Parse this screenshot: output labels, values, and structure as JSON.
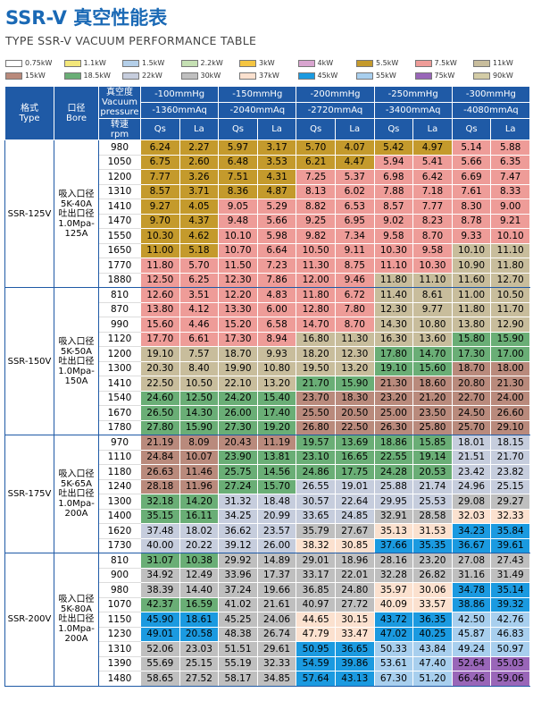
{
  "title": "SSR-V 真空性能表",
  "subtitle": "TYPE SSR-V VACUUM PERFORMANCE TABLE",
  "legend": [
    {
      "label": "0.75kW",
      "color": "#ffffff"
    },
    {
      "label": "1.1kW",
      "color": "#f3e77a"
    },
    {
      "label": "1.5kW",
      "color": "#b4cfe9"
    },
    {
      "label": "2.2kW",
      "color": "#c5e0b3"
    },
    {
      "label": "3kW",
      "color": "#f4c542"
    },
    {
      "label": "4kW",
      "color": "#d8a4cf"
    },
    {
      "label": "5.5kW",
      "color": "#c49a2c"
    },
    {
      "label": "7.5kW",
      "color": "#ee9c98"
    },
    {
      "label": "11kW",
      "color": "#c8bd9c"
    },
    {
      "label": "15kW",
      "color": "#b98a7c"
    },
    {
      "label": "18.5kW",
      "color": "#6aae76"
    },
    {
      "label": "22kW",
      "color": "#c6cddd"
    },
    {
      "label": "30kW",
      "color": "#bfbfbf"
    },
    {
      "label": "37kW",
      "color": "#fbe1cf"
    },
    {
      "label": "45kW",
      "color": "#1b9ae0"
    },
    {
      "label": "55kW",
      "color": "#a8cfee"
    },
    {
      "label": "75kW",
      "color": "#9966b8"
    },
    {
      "label": "90kW",
      "color": "#d3cca6"
    }
  ],
  "header": {
    "type_cn": "格式",
    "type_en": "Type",
    "bore_cn": "口径",
    "bore_en": "Bore",
    "vac_cn": "真空度",
    "vac_en1": "Vacuum",
    "vac_en2": "pressure",
    "rpm_cn": "转速",
    "rpm_en": "rpm",
    "qs": "Qs",
    "la": "La",
    "groups": [
      {
        "mmhg": "-100mmHg",
        "mmaq": "-1360mmAq"
      },
      {
        "mmhg": "-150mmHg",
        "mmaq": "-2040mmAq"
      },
      {
        "mmhg": "-200mmHg",
        "mmaq": "-2720mmAq"
      },
      {
        "mmhg": "-250mmHg",
        "mmaq": "-3400mmAq"
      },
      {
        "mmhg": "-300mmHg",
        "mmaq": "-4080mmAq"
      }
    ]
  },
  "models": [
    {
      "name": "SSR-125V",
      "bore": [
        "吸入口径",
        "5K-40A",
        "吐出口径",
        "1.0Mpa-",
        "125A"
      ],
      "rows": [
        {
          "rpm": 980,
          "values": [
            "6.24",
            "2.27",
            "5.97",
            "3.17",
            "5.70",
            "4.07",
            "5.42",
            "4.97",
            "5.14",
            "5.88"
          ],
          "colors": [
            "#c49a2c",
            "#c49a2c",
            "#c49a2c",
            "#c49a2c",
            "#ee9c98"
          ]
        },
        {
          "rpm": 1050,
          "values": [
            "6.75",
            "2.60",
            "6.48",
            "3.53",
            "6.21",
            "4.47",
            "5.94",
            "5.41",
            "5.66",
            "6.35"
          ],
          "colors": [
            "#c49a2c",
            "#c49a2c",
            "#c49a2c",
            "#ee9c98",
            "#ee9c98"
          ]
        },
        {
          "rpm": 1200,
          "values": [
            "7.77",
            "3.26",
            "7.51",
            "4.31",
            "7.25",
            "5.37",
            "6.98",
            "6.42",
            "6.69",
            "7.47"
          ],
          "colors": [
            "#c49a2c",
            "#c49a2c",
            "#ee9c98",
            "#ee9c98",
            "#ee9c98"
          ]
        },
        {
          "rpm": 1310,
          "values": [
            "8.57",
            "3.71",
            "8.36",
            "4.87",
            "8.13",
            "6.02",
            "7.88",
            "7.18",
            "7.61",
            "8.33"
          ],
          "colors": [
            "#c49a2c",
            "#c49a2c",
            "#ee9c98",
            "#ee9c98",
            "#ee9c98"
          ]
        },
        {
          "rpm": 1410,
          "values": [
            "9.27",
            "4.05",
            "9.05",
            "5.29",
            "8.82",
            "6.53",
            "8.57",
            "7.77",
            "8.30",
            "9.00"
          ],
          "colors": [
            "#c49a2c",
            "#ee9c98",
            "#ee9c98",
            "#ee9c98",
            "#ee9c98"
          ]
        },
        {
          "rpm": 1470,
          "values": [
            "9.70",
            "4.37",
            "9.48",
            "5.66",
            "9.25",
            "6.95",
            "9.02",
            "8.23",
            "8.78",
            "9.21"
          ],
          "colors": [
            "#c49a2c",
            "#ee9c98",
            "#ee9c98",
            "#ee9c98",
            "#ee9c98"
          ]
        },
        {
          "rpm": 1550,
          "values": [
            "10.30",
            "4.62",
            "10.10",
            "5.98",
            "9.82",
            "7.34",
            "9.58",
            "8.70",
            "9.33",
            "10.10"
          ],
          "colors": [
            "#c49a2c",
            "#ee9c98",
            "#ee9c98",
            "#ee9c98",
            "#ee9c98"
          ]
        },
        {
          "rpm": 1650,
          "values": [
            "11.00",
            "5.18",
            "10.70",
            "6.64",
            "10.50",
            "9.11",
            "10.30",
            "9.58",
            "10.10",
            "11.10"
          ],
          "colors": [
            "#c49a2c",
            "#ee9c98",
            "#ee9c98",
            "#ee9c98",
            "#c8bd9c"
          ]
        },
        {
          "rpm": 1770,
          "values": [
            "11.80",
            "5.70",
            "11.50",
            "7.23",
            "11.30",
            "8.75",
            "11.10",
            "10.30",
            "10.90",
            "11.80"
          ],
          "colors": [
            "#ee9c98",
            "#ee9c98",
            "#ee9c98",
            "#ee9c98",
            "#c8bd9c"
          ]
        },
        {
          "rpm": 1880,
          "values": [
            "12.50",
            "6.25",
            "12.30",
            "7.86",
            "12.00",
            "9.46",
            "11.80",
            "11.10",
            "11.60",
            "12.70"
          ],
          "colors": [
            "#ee9c98",
            "#ee9c98",
            "#ee9c98",
            "#c8bd9c",
            "#c8bd9c"
          ]
        }
      ]
    },
    {
      "name": "SSR-150V",
      "bore": [
        "吸入口径",
        "5K-50A",
        "吐出口径",
        "1.0Mpa-",
        "150A"
      ],
      "rows": [
        {
          "rpm": 810,
          "values": [
            "12.60",
            "3.51",
            "12.20",
            "4.83",
            "11.80",
            "6.72",
            "11.40",
            "8.61",
            "11.00",
            "10.50"
          ],
          "colors": [
            "#ee9c98",
            "#ee9c98",
            "#ee9c98",
            "#c8bd9c",
            "#c8bd9c"
          ]
        },
        {
          "rpm": 870,
          "values": [
            "13.80",
            "4.12",
            "13.30",
            "6.00",
            "12.80",
            "7.80",
            "12.30",
            "9.77",
            "11.80",
            "11.70"
          ],
          "colors": [
            "#ee9c98",
            "#ee9c98",
            "#ee9c98",
            "#c8bd9c",
            "#c8bd9c"
          ]
        },
        {
          "rpm": 990,
          "values": [
            "15.60",
            "4.46",
            "15.20",
            "6.58",
            "14.70",
            "8.70",
            "14.30",
            "10.80",
            "13.80",
            "12.90"
          ],
          "colors": [
            "#ee9c98",
            "#ee9c98",
            "#ee9c98",
            "#c8bd9c",
            "#c8bd9c"
          ]
        },
        {
          "rpm": 1120,
          "values": [
            "17.70",
            "6.61",
            "17.30",
            "8.94",
            "16.80",
            "11.30",
            "16.30",
            "13.60",
            "15.80",
            "15.90"
          ],
          "colors": [
            "#ee9c98",
            "#ee9c98",
            "#c8bd9c",
            "#c8bd9c",
            "#6aae76"
          ]
        },
        {
          "rpm": 1200,
          "values": [
            "19.10",
            "7.57",
            "18.70",
            "9.93",
            "18.20",
            "12.30",
            "17.80",
            "14.70",
            "17.30",
            "17.00"
          ],
          "colors": [
            "#c8bd9c",
            "#c8bd9c",
            "#c8bd9c",
            "#6aae76",
            "#6aae76"
          ]
        },
        {
          "rpm": 1300,
          "values": [
            "20.30",
            "8.40",
            "19.90",
            "10.80",
            "19.50",
            "13.20",
            "19.10",
            "15.60",
            "18.70",
            "18.00"
          ],
          "colors": [
            "#c8bd9c",
            "#c8bd9c",
            "#c8bd9c",
            "#6aae76",
            "#b98a7c"
          ]
        },
        {
          "rpm": 1410,
          "values": [
            "22.50",
            "10.50",
            "22.10",
            "13.20",
            "21.70",
            "15.90",
            "21.30",
            "18.60",
            "20.80",
            "21.30"
          ],
          "colors": [
            "#c8bd9c",
            "#c8bd9c",
            "#6aae76",
            "#b98a7c",
            "#b98a7c"
          ]
        },
        {
          "rpm": 1540,
          "values": [
            "24.60",
            "12.50",
            "24.20",
            "15.40",
            "23.70",
            "18.30",
            "23.20",
            "21.20",
            "22.70",
            "24.00"
          ],
          "colors": [
            "#6aae76",
            "#6aae76",
            "#b98a7c",
            "#b98a7c",
            "#b98a7c"
          ]
        },
        {
          "rpm": 1670,
          "values": [
            "26.50",
            "14.30",
            "26.00",
            "17.40",
            "25.50",
            "20.50",
            "25.00",
            "23.50",
            "24.50",
            "26.60"
          ],
          "colors": [
            "#6aae76",
            "#6aae76",
            "#b98a7c",
            "#b98a7c",
            "#b98a7c"
          ]
        },
        {
          "rpm": 1780,
          "values": [
            "27.80",
            "15.90",
            "27.30",
            "19.20",
            "26.80",
            "22.50",
            "26.30",
            "25.80",
            "25.70",
            "29.10"
          ],
          "colors": [
            "#6aae76",
            "#6aae76",
            "#b98a7c",
            "#b98a7c",
            "#b98a7c"
          ]
        }
      ]
    },
    {
      "name": "SSR-175V",
      "bore": [
        "吸入口径",
        "5K-65A",
        "吐出口径",
        "1.0Mpa-",
        "200A"
      ],
      "rows": [
        {
          "rpm": 970,
          "values": [
            "21.19",
            "8.09",
            "20.43",
            "11.19",
            "19.57",
            "13.69",
            "18.86",
            "15.85",
            "18.01",
            "18.15"
          ],
          "colors": [
            "#b98a7c",
            "#b98a7c",
            "#6aae76",
            "#6aae76",
            "#c6cddd"
          ]
        },
        {
          "rpm": 1110,
          "values": [
            "24.84",
            "10.07",
            "23.90",
            "13.81",
            "23.10",
            "16.65",
            "22.55",
            "19.14",
            "21.51",
            "21.70"
          ],
          "colors": [
            "#b98a7c",
            "#6aae76",
            "#6aae76",
            "#6aae76",
            "#c6cddd"
          ]
        },
        {
          "rpm": 1180,
          "values": [
            "26.63",
            "11.46",
            "25.75",
            "14.56",
            "24.86",
            "17.75",
            "24.28",
            "20.53",
            "23.42",
            "23.82"
          ],
          "colors": [
            "#b98a7c",
            "#6aae76",
            "#6aae76",
            "#6aae76",
            "#c6cddd"
          ]
        },
        {
          "rpm": 1240,
          "values": [
            "28.18",
            "11.96",
            "27.24",
            "15.70",
            "26.55",
            "19.01",
            "25.88",
            "21.74",
            "24.96",
            "25.15"
          ],
          "colors": [
            "#b98a7c",
            "#6aae76",
            "#c6cddd",
            "#c6cddd",
            "#c6cddd"
          ]
        },
        {
          "rpm": 1300,
          "values": [
            "32.18",
            "14.20",
            "31.32",
            "18.48",
            "30.57",
            "22.64",
            "29.95",
            "25.53",
            "29.08",
            "29.27"
          ],
          "colors": [
            "#6aae76",
            "#c6cddd",
            "#c6cddd",
            "#c6cddd",
            "#bfbfbf"
          ]
        },
        {
          "rpm": 1400,
          "values": [
            "35.15",
            "16.11",
            "34.25",
            "20.99",
            "33.65",
            "24.85",
            "32.91",
            "28.58",
            "32.03",
            "32.33"
          ],
          "colors": [
            "#6aae76",
            "#c6cddd",
            "#c6cddd",
            "#bfbfbf",
            "#fbe1cf"
          ]
        },
        {
          "rpm": 1620,
          "values": [
            "37.48",
            "18.02",
            "36.62",
            "23.57",
            "35.79",
            "27.67",
            "35.13",
            "31.53",
            "34.23",
            "35.84"
          ],
          "colors": [
            "#c6cddd",
            "#c6cddd",
            "#bfbfbf",
            "#fbe1cf",
            "#1b9ae0"
          ]
        },
        {
          "rpm": 1730,
          "values": [
            "40.00",
            "20.22",
            "39.12",
            "26.00",
            "38.32",
            "30.85",
            "37.66",
            "35.35",
            "36.67",
            "39.61"
          ],
          "colors": [
            "#c6cddd",
            "#c6cddd",
            "#fbe1cf",
            "#1b9ae0",
            "#1b9ae0"
          ]
        }
      ]
    },
    {
      "name": "SSR-200V",
      "bore": [
        "吸入口径",
        "5K-80A",
        "吐出口径",
        "1.0Mpa-",
        "200A"
      ],
      "rows": [
        {
          "rpm": 810,
          "values": [
            "31.07",
            "10.38",
            "29.92",
            "14.89",
            "29.01",
            "18.96",
            "28.16",
            "23.20",
            "27.08",
            "27.43"
          ],
          "colors": [
            "#6aae76",
            "#bfbfbf",
            "#bfbfbf",
            "#bfbfbf",
            "#bfbfbf"
          ]
        },
        {
          "rpm": 900,
          "values": [
            "34.92",
            "12.49",
            "33.96",
            "17.37",
            "33.17",
            "22.01",
            "32.28",
            "26.82",
            "31.16",
            "31.49"
          ],
          "colors": [
            "#bfbfbf",
            "#bfbfbf",
            "#bfbfbf",
            "#bfbfbf",
            "#bfbfbf"
          ]
        },
        {
          "rpm": 980,
          "values": [
            "38.39",
            "14.40",
            "37.24",
            "19.66",
            "36.85",
            "24.80",
            "35.97",
            "30.06",
            "34.78",
            "35.14"
          ],
          "colors": [
            "#bfbfbf",
            "#bfbfbf",
            "#bfbfbf",
            "#fbe1cf",
            "#1b9ae0"
          ]
        },
        {
          "rpm": 1070,
          "values": [
            "42.37",
            "16.59",
            "41.02",
            "21.61",
            "40.97",
            "27.72",
            "40.09",
            "33.57",
            "38.86",
            "39.32"
          ],
          "colors": [
            "#6aae76",
            "#bfbfbf",
            "#bfbfbf",
            "#fbe1cf",
            "#1b9ae0"
          ]
        },
        {
          "rpm": 1150,
          "values": [
            "45.90",
            "18.61",
            "45.25",
            "24.06",
            "44.65",
            "30.15",
            "43.72",
            "36.35",
            "42.50",
            "42.76"
          ],
          "colors": [
            "#1b9ae0",
            "#bfbfbf",
            "#fbe1cf",
            "#1b9ae0",
            "#a8cfee"
          ]
        },
        {
          "rpm": 1230,
          "values": [
            "49.01",
            "20.58",
            "48.38",
            "26.74",
            "47.79",
            "33.47",
            "47.02",
            "40.25",
            "45.87",
            "46.83"
          ],
          "colors": [
            "#1b9ae0",
            "#bfbfbf",
            "#fbe1cf",
            "#1b9ae0",
            "#a8cfee"
          ]
        },
        {
          "rpm": 1310,
          "values": [
            "52.06",
            "23.03",
            "51.51",
            "29.61",
            "50.95",
            "36.65",
            "50.33",
            "43.84",
            "49.24",
            "50.97"
          ],
          "colors": [
            "#bfbfbf",
            "#bfbfbf",
            "#1b9ae0",
            "#a8cfee",
            "#a8cfee"
          ]
        },
        {
          "rpm": 1390,
          "values": [
            "55.69",
            "25.15",
            "55.19",
            "32.33",
            "54.59",
            "39.86",
            "53.61",
            "47.40",
            "52.64",
            "55.03"
          ],
          "colors": [
            "#bfbfbf",
            "#bfbfbf",
            "#1b9ae0",
            "#a8cfee",
            "#9966b8"
          ]
        },
        {
          "rpm": 1480,
          "values": [
            "58.65",
            "27.52",
            "58.17",
            "34.85",
            "57.64",
            "43.13",
            "67.30",
            "51.20",
            "66.46",
            "59.06"
          ],
          "colors": [
            "#bfbfbf",
            "#bfbfbf",
            "#1b9ae0",
            "#a8cfee",
            "#9966b8"
          ]
        }
      ]
    }
  ]
}
